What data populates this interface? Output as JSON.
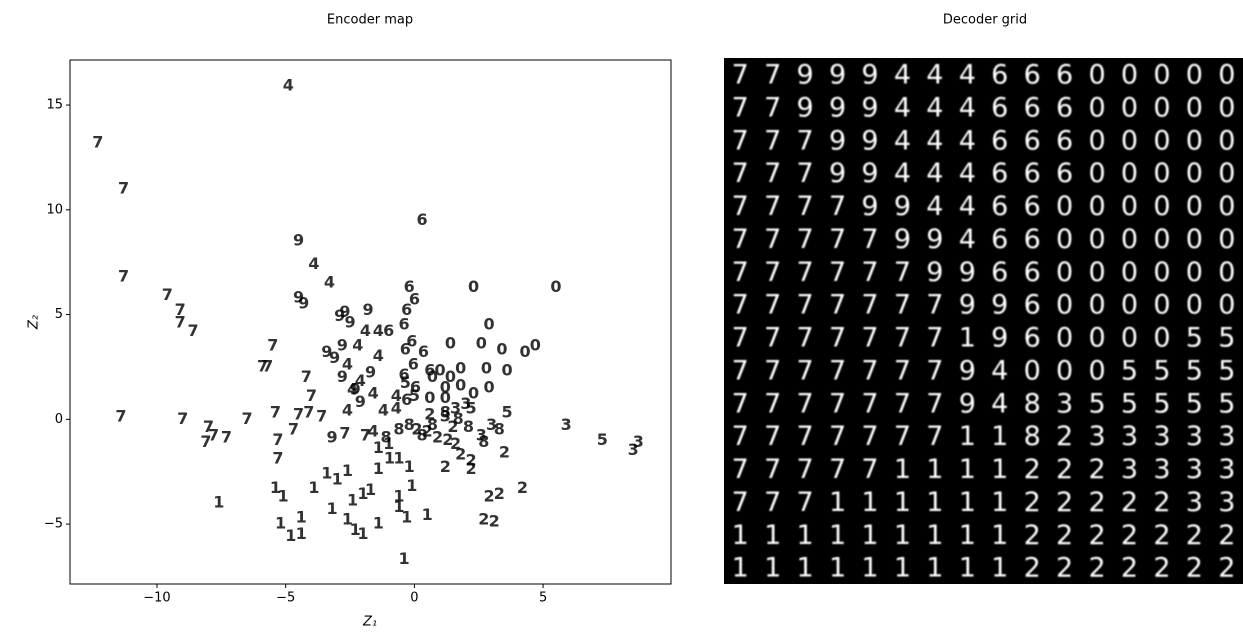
{
  "chart_data": [
    {
      "type": "scatter",
      "title": "Encoder map",
      "xlabel": "Z₁",
      "ylabel": "Z₂",
      "xlim": [
        -13.38,
        9.97
      ],
      "ylim": [
        -7.86,
        17.15
      ],
      "xticks": [
        {
          "value": -10,
          "label": "−10"
        },
        {
          "value": -5,
          "label": "−5"
        },
        0,
        5
      ],
      "yticks": [
        {
          "value": -5,
          "label": "−5"
        },
        0,
        5,
        10,
        15
      ],
      "series": [
        {
          "name": "0",
          "color": "#1f77b4",
          "x": [
            2.3,
            5.5,
            1.4,
            2.9,
            2.6,
            3.4,
            4.3,
            4.7,
            3.6,
            2.8,
            1.8,
            1.4,
            1.0,
            0.7,
            1.2,
            1.8,
            2.3,
            2.9,
            1.2,
            0.6
          ],
          "values": [
            6.3,
            6.3,
            3.6,
            4.5,
            3.6,
            3.3,
            3.2,
            3.5,
            2.3,
            2.4,
            2.4,
            2.0,
            2.3,
            2.0,
            1.5,
            1.6,
            1.2,
            1.5,
            1.0,
            1.0
          ]
        },
        {
          "name": "1",
          "color": "#ff7f0e",
          "x": [
            -7.6,
            -5.4,
            -5.1,
            -5.2,
            -4.8,
            -4.4,
            -4.4,
            -3.9,
            -3.4,
            -3.0,
            -2.6,
            -3.2,
            -2.6,
            -2.3,
            -2.0,
            -1.4,
            -2.0,
            -1.7,
            -1.4,
            -0.97,
            -0.6,
            -0.2,
            -0.1,
            -0.6,
            -0.6,
            -0.3,
            0.5,
            -0.4,
            -1.0,
            -1.4,
            -2.4
          ],
          "values": [
            -4.0,
            -3.3,
            -3.7,
            -5.0,
            -5.6,
            -5.5,
            -4.7,
            -3.3,
            -2.6,
            -2.9,
            -2.5,
            -4.3,
            -4.8,
            -5.3,
            -5.5,
            -5.0,
            -3.6,
            -3.4,
            -2.4,
            -1.9,
            -1.9,
            -2.3,
            -3.2,
            -3.7,
            -4.2,
            -4.7,
            -4.6,
            -6.7,
            -1.2,
            -1.4,
            -3.9
          ]
        },
        {
          "name": "2",
          "color": "#2ca02c",
          "x": [
            0.1,
            0.5,
            0.9,
            1.3,
            1.6,
            1.8,
            1.2,
            2.2,
            2.9,
            3.3,
            3.5,
            4.2,
            2.7,
            3.1,
            0.6,
            1.5,
            2.2
          ],
          "values": [
            -0.5,
            -0.6,
            -0.9,
            -1.0,
            -1.2,
            -1.7,
            -2.3,
            -2.4,
            -3.7,
            -3.6,
            -1.6,
            -3.3,
            -4.8,
            -4.9,
            0.2,
            -0.4,
            -2.0
          ]
        },
        {
          "name": "3",
          "color": "#d62728",
          "x": [
            5.9,
            8.7,
            8.5,
            2.6,
            3.0,
            1.2,
            1.6,
            2.0
          ],
          "values": [
            -0.3,
            -1.1,
            -1.5,
            -0.8,
            -0.3,
            0.1,
            0.5,
            0.7
          ]
        },
        {
          "name": "4",
          "color": "#9467bd",
          "x": [
            -4.9,
            -3.9,
            -3.3,
            -1.9,
            -1.4,
            -2.2,
            -1.4,
            -2.6,
            -2.1,
            -1.6,
            -1.2,
            -2.6,
            -0.7,
            -1.6,
            -0.7,
            -2.4
          ],
          "values": [
            15.9,
            7.4,
            6.5,
            4.2,
            4.2,
            3.5,
            3.0,
            2.6,
            1.8,
            1.2,
            0.4,
            0.4,
            0.5,
            -0.6,
            1.1,
            1.4
          ]
        },
        {
          "name": "5",
          "color": "#8c564b",
          "x": [
            7.3,
            3.6,
            2.2,
            -0.35,
            0
          ],
          "values": [
            -1.0,
            0.3,
            0.5,
            1.7,
            1.1
          ]
        },
        {
          "name": "6",
          "color": "#e377c2",
          "x": [
            0.3,
            -0.2,
            0,
            -0.3,
            -0.4,
            -1.0,
            -0.1,
            -0.35,
            0.35,
            -0.04,
            0.6,
            -0.4,
            0.04,
            -0.3
          ],
          "values": [
            9.5,
            6.3,
            5.7,
            5.2,
            4.5,
            4.2,
            3.7,
            3.3,
            3.2,
            2.6,
            2.3,
            2.1,
            1.5,
            0.9
          ]
        },
        {
          "name": "7",
          "color": "#7f7f7f",
          "x": [
            -12.3,
            -11.3,
            -11.3,
            -9.6,
            -9.1,
            -9.1,
            -8.6,
            -5.5,
            -5.9,
            -5.7,
            -4.2,
            -4.0,
            -11.4,
            -9.0,
            -8.0,
            -7.8,
            -8.1,
            -7.3,
            -6.5,
            -5.4,
            -5.3,
            -5.3,
            -4.5,
            -4.7,
            -3.6,
            -2.7,
            -1.9,
            -4.1
          ],
          "values": [
            13.2,
            11.0,
            6.8,
            5.9,
            5.2,
            4.6,
            4.2,
            3.5,
            2.5,
            2.5,
            2.0,
            1.1,
            0.1,
            0,
            -0.4,
            -0.8,
            -1.1,
            -0.9,
            0,
            0.3,
            -1.0,
            -1.9,
            0.2,
            -0.5,
            0.1,
            -0.7,
            -0.8,
            0.3
          ]
        },
        {
          "name": "8",
          "color": "#bcbd22",
          "x": [
            -1.1,
            -0.6,
            -0.2,
            0.3,
            1.7,
            2.1,
            2.7,
            3.3,
            1.2,
            0.7
          ],
          "values": [
            -0.9,
            -0.5,
            -0.3,
            -0.8,
            0,
            -0.4,
            -1.1,
            -0.5,
            0.3,
            -0.3
          ]
        },
        {
          "name": "9",
          "color": "#17becf",
          "x": [
            -4.5,
            -4.5,
            -4.3,
            -2.9,
            -2.5,
            -2.7,
            -1.8,
            -3.4,
            -3.1,
            -2.8,
            -2.3,
            -2.1,
            -3.2,
            -2.8,
            -1.7
          ],
          "values": [
            8.5,
            5.8,
            5.5,
            4.9,
            4.6,
            5.1,
            5.2,
            3.2,
            2.9,
            3.5,
            1.4,
            0.8,
            -0.9,
            2.0,
            2.2
          ]
        }
      ]
    },
    {
      "type": "image",
      "title": "Decoder grid",
      "rows": [
        [
          "7",
          "7",
          "9",
          "9",
          "9",
          "4",
          "4",
          "4",
          "6",
          "6",
          "6",
          "0",
          "0",
          "0",
          "0",
          "0"
        ],
        [
          "7",
          "7",
          "9",
          "9",
          "9",
          "4",
          "4",
          "4",
          "6",
          "6",
          "6",
          "0",
          "0",
          "0",
          "0",
          "0"
        ],
        [
          "7",
          "7",
          "7",
          "9",
          "9",
          "4",
          "4",
          "4",
          "6",
          "6",
          "6",
          "0",
          "0",
          "0",
          "0",
          "0"
        ],
        [
          "7",
          "7",
          "7",
          "9",
          "9",
          "4",
          "4",
          "4",
          "6",
          "6",
          "6",
          "0",
          "0",
          "0",
          "0",
          "0"
        ],
        [
          "7",
          "7",
          "7",
          "7",
          "9",
          "9",
          "4",
          "4",
          "6",
          "6",
          "0",
          "0",
          "0",
          "0",
          "0",
          "0"
        ],
        [
          "7",
          "7",
          "7",
          "7",
          "7",
          "9",
          "9",
          "4",
          "6",
          "6",
          "0",
          "0",
          "0",
          "0",
          "0",
          "0"
        ],
        [
          "7",
          "7",
          "7",
          "7",
          "7",
          "7",
          "9",
          "9",
          "6",
          "6",
          "0",
          "0",
          "0",
          "0",
          "0",
          "0"
        ],
        [
          "7",
          "7",
          "7",
          "7",
          "7",
          "7",
          "7",
          "9",
          "9",
          "6",
          "0",
          "0",
          "0",
          "0",
          "0",
          "0"
        ],
        [
          "7",
          "7",
          "7",
          "7",
          "7",
          "7",
          "7",
          "1",
          "9",
          "6",
          "0",
          "0",
          "0",
          "0",
          "5",
          "5"
        ],
        [
          "7",
          "7",
          "7",
          "7",
          "7",
          "7",
          "7",
          "9",
          "4",
          "0",
          "0",
          "0",
          "5",
          "5",
          "5",
          "5"
        ],
        [
          "7",
          "7",
          "7",
          "7",
          "7",
          "7",
          "7",
          "9",
          "4",
          "8",
          "3",
          "5",
          "5",
          "5",
          "5",
          "5"
        ],
        [
          "7",
          "7",
          "7",
          "7",
          "7",
          "7",
          "7",
          "1",
          "1",
          "8",
          "2",
          "3",
          "3",
          "3",
          "3",
          "3"
        ],
        [
          "7",
          "7",
          "7",
          "7",
          "7",
          "1",
          "1",
          "1",
          "1",
          "2",
          "2",
          "2",
          "3",
          "3",
          "3",
          "3"
        ],
        [
          "7",
          "7",
          "7",
          "1",
          "1",
          "1",
          "1",
          "1",
          "1",
          "2",
          "2",
          "2",
          "2",
          "2",
          "3",
          "3"
        ],
        [
          "1",
          "1",
          "1",
          "1",
          "1",
          "1",
          "1",
          "1",
          "1",
          "2",
          "2",
          "2",
          "2",
          "2",
          "2",
          "2"
        ],
        [
          "1",
          "1",
          "1",
          "1",
          "1",
          "1",
          "1",
          "1",
          "1",
          "2",
          "2",
          "2",
          "2",
          "2",
          "2",
          "2"
        ]
      ]
    }
  ]
}
